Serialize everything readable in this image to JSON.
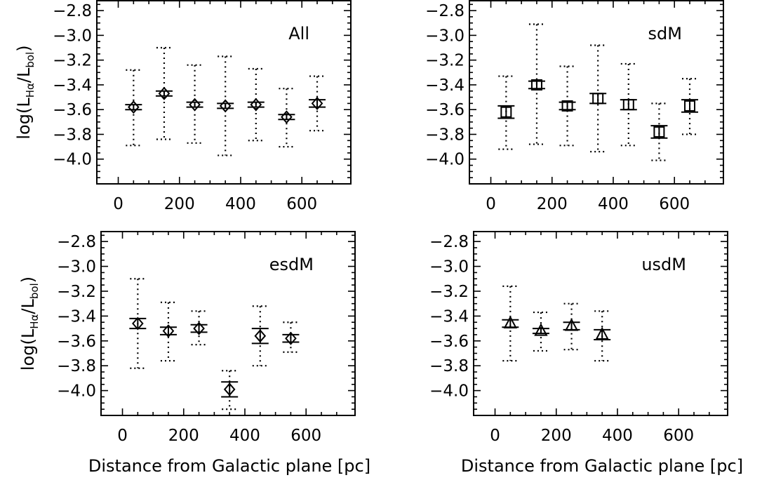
{
  "chart_data": [
    {
      "type": "scatter",
      "title": "",
      "panel_label": "All",
      "xlabel": "",
      "ylabel": "log(L_Hα/L_bol)",
      "ylabel_parts": {
        "prefix": "log(L",
        "sub1": "Hα",
        "mid": "/L",
        "sub2": "bol",
        "suffix": ")"
      },
      "xlim": [
        -70,
        760
      ],
      "ylim": [
        -4.2,
        -2.72
      ],
      "xticks": [
        0,
        200,
        400,
        600
      ],
      "xtick_labels": [
        "0",
        "200",
        "400",
        "600"
      ],
      "yticks": [
        -2.8,
        -3.0,
        -3.2,
        -3.4,
        -3.6,
        -3.8,
        -4.0
      ],
      "ytick_labels": [
        "−2.8",
        "−3.0",
        "−3.2",
        "−3.4",
        "−3.6",
        "−3.8",
        "−4.0"
      ],
      "marker": "diamond",
      "grid": false,
      "points": [
        {
          "x": 50,
          "y": -3.58,
          "err": 0.02,
          "dlo": -3.89,
          "dhi": -3.28
        },
        {
          "x": 150,
          "y": -3.47,
          "err": 0.02,
          "dlo": -3.84,
          "dhi": -3.1
        },
        {
          "x": 250,
          "y": -3.56,
          "err": 0.02,
          "dlo": -3.87,
          "dhi": -3.24
        },
        {
          "x": 350,
          "y": -3.57,
          "err": 0.02,
          "dlo": -3.97,
          "dhi": -3.17
        },
        {
          "x": 450,
          "y": -3.56,
          "err": 0.02,
          "dlo": -3.85,
          "dhi": -3.27
        },
        {
          "x": 550,
          "y": -3.66,
          "err": 0.02,
          "dlo": -3.9,
          "dhi": -3.43
        },
        {
          "x": 650,
          "y": -3.55,
          "err": 0.03,
          "dlo": -3.77,
          "dhi": -3.33
        }
      ]
    },
    {
      "type": "scatter",
      "title": "",
      "panel_label": "sdM",
      "xlabel": "",
      "ylabel": "",
      "xlim": [
        -70,
        760
      ],
      "ylim": [
        -4.2,
        -2.72
      ],
      "xticks": [
        0,
        200,
        400,
        600
      ],
      "xtick_labels": [
        "0",
        "200",
        "400",
        "600"
      ],
      "yticks": [
        -2.8,
        -3.0,
        -3.2,
        -3.4,
        -3.6,
        -3.8,
        -4.0
      ],
      "ytick_labels": [
        "−2.8",
        "−3.0",
        "−3.2",
        "−3.4",
        "−3.6",
        "−3.8",
        "−4.0"
      ],
      "marker": "square",
      "grid": false,
      "points": [
        {
          "x": 50,
          "y": -3.62,
          "err": 0.05,
          "dlo": -3.92,
          "dhi": -3.33
        },
        {
          "x": 150,
          "y": -3.4,
          "err": 0.03,
          "dlo": -3.88,
          "dhi": -2.91
        },
        {
          "x": 250,
          "y": -3.57,
          "err": 0.03,
          "dlo": -3.89,
          "dhi": -3.25
        },
        {
          "x": 350,
          "y": -3.51,
          "err": 0.04,
          "dlo": -3.94,
          "dhi": -3.08
        },
        {
          "x": 450,
          "y": -3.56,
          "err": 0.04,
          "dlo": -3.89,
          "dhi": -3.23
        },
        {
          "x": 550,
          "y": -3.78,
          "err": 0.05,
          "dlo": -4.01,
          "dhi": -3.55
        },
        {
          "x": 650,
          "y": -3.57,
          "err": 0.05,
          "dlo": -3.8,
          "dhi": -3.35
        }
      ]
    },
    {
      "type": "scatter",
      "title": "",
      "panel_label": "esdM",
      "xlabel": "Distance from Galactic plane [pc]",
      "ylabel": "log(L_Hα/L_bol)",
      "ylabel_parts": {
        "prefix": "log(L",
        "sub1": "Hα",
        "mid": "/L",
        "sub2": "bol",
        "suffix": ")"
      },
      "xlim": [
        -70,
        760
      ],
      "ylim": [
        -4.2,
        -2.72
      ],
      "xticks": [
        0,
        200,
        400,
        600
      ],
      "xtick_labels": [
        "0",
        "200",
        "400",
        "600"
      ],
      "yticks": [
        -2.8,
        -3.0,
        -3.2,
        -3.4,
        -3.6,
        -3.8,
        -4.0
      ],
      "ytick_labels": [
        "−2.8",
        "−3.0",
        "−3.2",
        "−3.4",
        "−3.6",
        "−3.8",
        "−4.0"
      ],
      "marker": "diamond",
      "grid": false,
      "points": [
        {
          "x": 50,
          "y": -3.46,
          "err": 0.04,
          "dlo": -3.82,
          "dhi": -3.1
        },
        {
          "x": 150,
          "y": -3.52,
          "err": 0.03,
          "dlo": -3.76,
          "dhi": -3.29
        },
        {
          "x": 250,
          "y": -3.5,
          "err": 0.03,
          "dlo": -3.63,
          "dhi": -3.36
        },
        {
          "x": 350,
          "y": -3.99,
          "err": 0.06,
          "dlo": -4.15,
          "dhi": -3.84
        },
        {
          "x": 450,
          "y": -3.56,
          "err": 0.06,
          "dlo": -3.8,
          "dhi": -3.32
        },
        {
          "x": 550,
          "y": -3.58,
          "err": 0.03,
          "dlo": -3.69,
          "dhi": -3.45
        }
      ]
    },
    {
      "type": "scatter",
      "title": "",
      "panel_label": "usdM",
      "xlabel": "Distance from Galactic plane [pc]",
      "ylabel": "",
      "xlim": [
        -70,
        760
      ],
      "ylim": [
        -4.2,
        -2.72
      ],
      "xticks": [
        0,
        200,
        400,
        600
      ],
      "xtick_labels": [
        "0",
        "200",
        "400",
        "600"
      ],
      "yticks": [
        -2.8,
        -3.0,
        -3.2,
        -3.4,
        -3.6,
        -3.8,
        -4.0
      ],
      "ytick_labels": [
        "−2.8",
        "−3.0",
        "−3.2",
        "−3.4",
        "−3.6",
        "−3.8",
        "−4.0"
      ],
      "marker": "triangle",
      "grid": false,
      "points": [
        {
          "x": 50,
          "y": -3.46,
          "err": 0.03,
          "dlo": -3.76,
          "dhi": -3.16
        },
        {
          "x": 150,
          "y": -3.52,
          "err": 0.02,
          "dlo": -3.68,
          "dhi": -3.37
        },
        {
          "x": 250,
          "y": -3.48,
          "err": 0.03,
          "dlo": -3.67,
          "dhi": -3.3
        },
        {
          "x": 350,
          "y": -3.55,
          "err": 0.04,
          "dlo": -3.76,
          "dhi": -3.36
        }
      ]
    }
  ],
  "colors": {
    "axes": "#000000",
    "background": "#ffffff"
  }
}
